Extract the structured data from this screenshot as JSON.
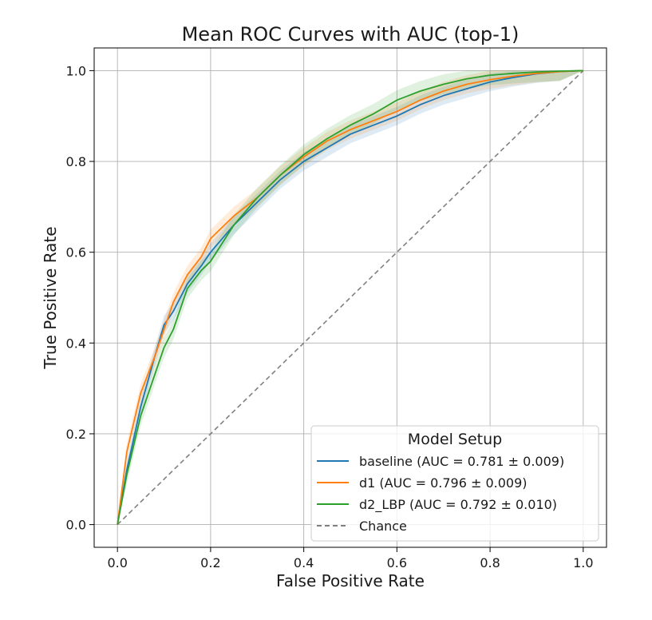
{
  "chart_data": {
    "type": "line",
    "title": "Mean ROC Curves with AUC (top-1)",
    "xlabel": "False Positive Rate",
    "ylabel": "True Positive Rate",
    "xlim": [
      -0.05,
      1.05
    ],
    "ylim": [
      -0.05,
      1.05
    ],
    "xticks": [
      "0.0",
      "0.2",
      "0.4",
      "0.6",
      "0.8",
      "1.0"
    ],
    "yticks": [
      "0.0",
      "0.2",
      "0.4",
      "0.6",
      "0.8",
      "1.0"
    ],
    "grid": true,
    "legend": {
      "title": "Model Setup",
      "placement": "lower-right"
    },
    "series": [
      {
        "name": "baseline (AUC = 0.781 ± 0.009)",
        "color": "#1f77b4",
        "x": [
          0,
          0.02,
          0.05,
          0.08,
          0.1,
          0.12,
          0.15,
          0.18,
          0.2,
          0.25,
          0.3,
          0.35,
          0.4,
          0.45,
          0.5,
          0.55,
          0.6,
          0.65,
          0.7,
          0.75,
          0.8,
          0.85,
          0.9,
          0.95,
          1.0
        ],
        "y": [
          0,
          0.12,
          0.26,
          0.37,
          0.44,
          0.47,
          0.53,
          0.57,
          0.6,
          0.66,
          0.71,
          0.76,
          0.8,
          0.83,
          0.86,
          0.88,
          0.9,
          0.925,
          0.945,
          0.96,
          0.975,
          0.985,
          0.993,
          0.998,
          1.0
        ],
        "band": 0.02
      },
      {
        "name": "d1 (AUC = 0.796 ± 0.009)",
        "color": "#ff7f0e",
        "x": [
          0,
          0.02,
          0.05,
          0.08,
          0.1,
          0.12,
          0.15,
          0.18,
          0.2,
          0.25,
          0.3,
          0.35,
          0.4,
          0.45,
          0.5,
          0.55,
          0.6,
          0.65,
          0.7,
          0.75,
          0.8,
          0.85,
          0.9,
          0.95,
          1.0
        ],
        "y": [
          0,
          0.16,
          0.29,
          0.37,
          0.43,
          0.49,
          0.55,
          0.59,
          0.63,
          0.68,
          0.72,
          0.77,
          0.81,
          0.845,
          0.87,
          0.89,
          0.91,
          0.935,
          0.955,
          0.97,
          0.98,
          0.988,
          0.994,
          0.998,
          1.0
        ],
        "band": 0.02
      },
      {
        "name": "d2_LBP (AUC = 0.792 ± 0.010)",
        "color": "#2ca02c",
        "x": [
          0,
          0.02,
          0.05,
          0.08,
          0.1,
          0.12,
          0.15,
          0.18,
          0.2,
          0.25,
          0.3,
          0.35,
          0.4,
          0.45,
          0.5,
          0.55,
          0.6,
          0.65,
          0.7,
          0.75,
          0.8,
          0.85,
          0.9,
          0.95,
          1.0
        ],
        "y": [
          0,
          0.11,
          0.24,
          0.33,
          0.39,
          0.43,
          0.52,
          0.56,
          0.58,
          0.66,
          0.72,
          0.77,
          0.815,
          0.85,
          0.88,
          0.905,
          0.935,
          0.955,
          0.97,
          0.982,
          0.99,
          0.994,
          0.997,
          0.999,
          1.0
        ],
        "band": 0.022
      }
    ],
    "reference": {
      "name": "Chance",
      "color": "#808080",
      "x": [
        0,
        1
      ],
      "y": [
        0,
        1
      ]
    }
  }
}
